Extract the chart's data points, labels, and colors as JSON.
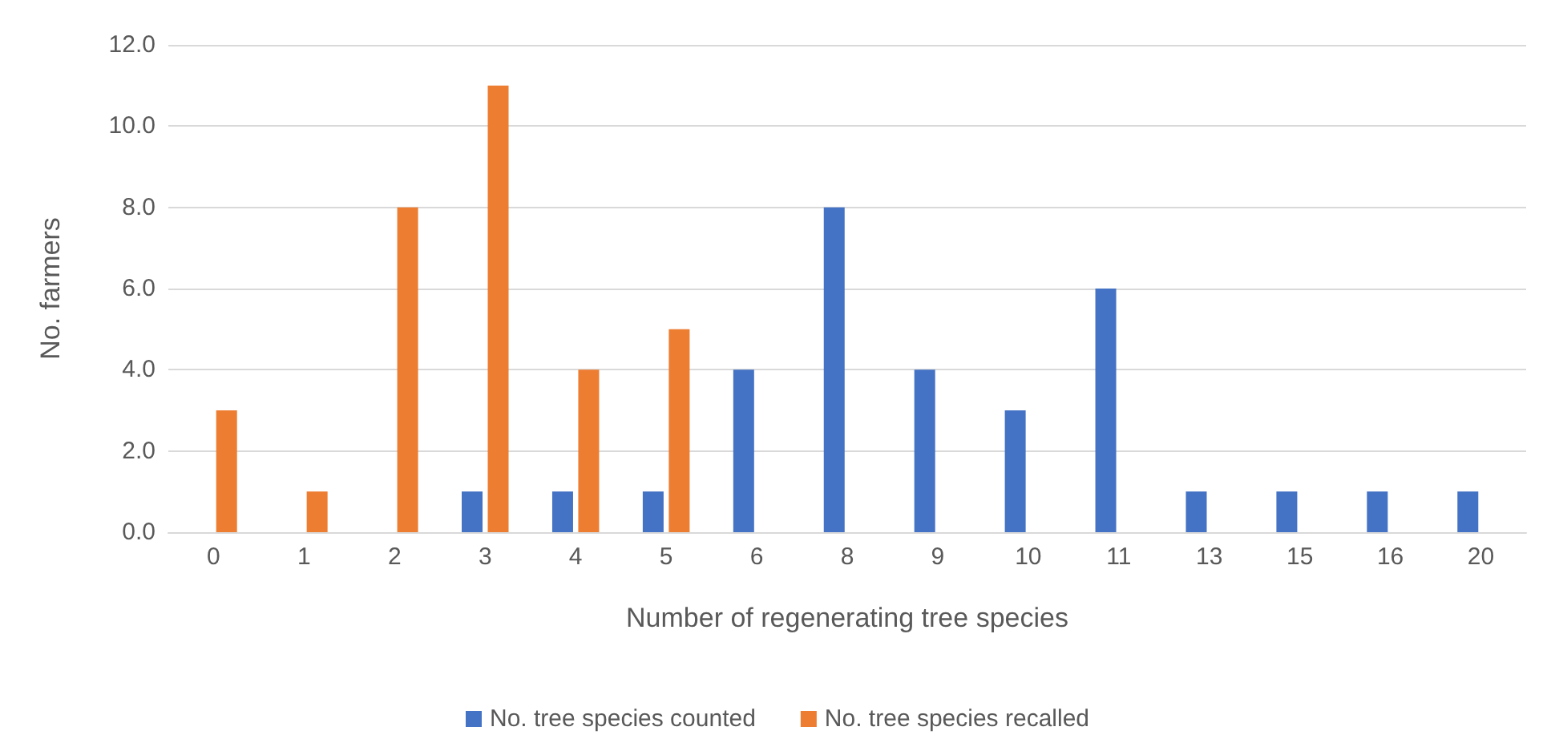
{
  "chart_data": {
    "type": "bar",
    "xlabel": "Number of regenerating tree species",
    "ylabel": "No. farmers",
    "categories": [
      "0",
      "1",
      "2",
      "3",
      "4",
      "5",
      "6",
      "8",
      "9",
      "10",
      "11",
      "13",
      "15",
      "16",
      "20"
    ],
    "series": [
      {
        "name": "No. tree species counted",
        "color": "#4472c4",
        "values": [
          0,
          0,
          0,
          1,
          1,
          1,
          4,
          8,
          4,
          3,
          6,
          1,
          1,
          1,
          1
        ]
      },
      {
        "name": "No. tree species recalled",
        "color": "#ed7d31",
        "values": [
          3,
          1,
          8,
          11,
          4,
          5,
          0,
          0,
          0,
          0,
          0,
          0,
          0,
          0,
          0
        ]
      }
    ],
    "ylim": [
      0,
      12
    ],
    "yticks": [
      {
        "value": 0,
        "label": "0.0"
      },
      {
        "value": 2,
        "label": "2.0"
      },
      {
        "value": 4,
        "label": "4.0"
      },
      {
        "value": 6,
        "label": "6.0"
      },
      {
        "value": 8,
        "label": "8.0"
      },
      {
        "value": 10,
        "label": "10.0"
      },
      {
        "value": 12,
        "label": "12.0"
      }
    ],
    "grid": "y",
    "legend": "bottom"
  }
}
